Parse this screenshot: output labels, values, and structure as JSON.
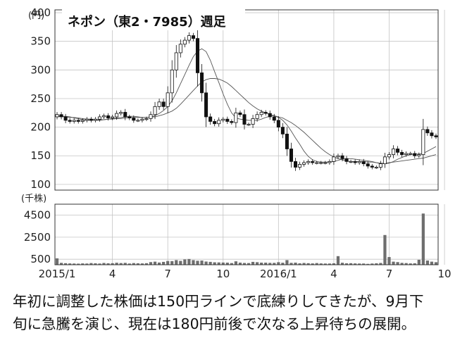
{
  "chart_data": {
    "type": "candlestick",
    "title": "ネポン（東2・7985）週足",
    "price_unit_label": "(円)",
    "volume_unit_label": "(千株)",
    "price_axis": {
      "ticks": [
        100,
        150,
        200,
        250,
        300,
        350,
        400
      ],
      "ylim": [
        90,
        405
      ]
    },
    "volume_axis": {
      "ticks": [
        500,
        2500,
        4500
      ],
      "ylim": [
        0,
        5500
      ]
    },
    "x_axis": {
      "tick_labels": [
        "2015/1",
        "4",
        "7",
        "10",
        "2016/1",
        "4",
        "7",
        "10"
      ],
      "tick_weeks": [
        0,
        13,
        26,
        39,
        52,
        65,
        78,
        91
      ]
    },
    "weekly_open": [
      218,
      222,
      218,
      212,
      210,
      212,
      210,
      212,
      214,
      212,
      214,
      218,
      220,
      216,
      218,
      224,
      226,
      218,
      216,
      212,
      212,
      214,
      215,
      222,
      236,
      244,
      236,
      260,
      300,
      330,
      345,
      352,
      360,
      355,
      295,
      260,
      218,
      210,
      206,
      212,
      214,
      210,
      208,
      225,
      222,
      205,
      205,
      215,
      222,
      226,
      224,
      218,
      212,
      200,
      188,
      162,
      140,
      130,
      135,
      138,
      140,
      138,
      138,
      138,
      138,
      140,
      148,
      150,
      145,
      140,
      140,
      138,
      140,
      136,
      132,
      130,
      130,
      136,
      148,
      152,
      162,
      156,
      152,
      154,
      154,
      150,
      152,
      196,
      190,
      185
    ],
    "weekly_close": [
      222,
      218,
      212,
      210,
      212,
      210,
      212,
      214,
      212,
      214,
      218,
      220,
      216,
      218,
      224,
      226,
      218,
      216,
      212,
      212,
      214,
      215,
      222,
      236,
      244,
      236,
      260,
      300,
      330,
      345,
      352,
      360,
      355,
      295,
      260,
      218,
      210,
      206,
      212,
      214,
      210,
      208,
      225,
      222,
      205,
      205,
      215,
      222,
      226,
      224,
      218,
      212,
      200,
      188,
      162,
      140,
      130,
      135,
      138,
      140,
      138,
      138,
      138,
      138,
      140,
      148,
      150,
      145,
      140,
      140,
      138,
      140,
      136,
      132,
      130,
      130,
      136,
      148,
      152,
      162,
      156,
      152,
      154,
      154,
      150,
      152,
      196,
      190,
      185,
      183
    ],
    "weekly_volume": [
      580,
      170,
      140,
      120,
      110,
      100,
      120,
      110,
      150,
      130,
      110,
      160,
      130,
      140,
      180,
      150,
      170,
      110,
      150,
      130,
      120,
      140,
      240,
      280,
      200,
      260,
      340,
      330,
      420,
      350,
      480,
      520,
      420,
      360,
      380,
      290,
      260,
      220,
      210,
      200,
      190,
      150,
      310,
      190,
      160,
      150,
      260,
      230,
      190,
      190,
      170,
      170,
      230,
      180,
      420,
      170,
      190,
      130,
      160,
      140,
      120,
      150,
      120,
      110,
      110,
      130,
      780,
      180,
      130,
      140,
      120,
      110,
      110,
      80,
      110,
      130,
      160,
      2700,
      700,
      280,
      240,
      170,
      150,
      120,
      130,
      450,
      4650,
      380,
      280,
      230
    ],
    "ma_short": [
      218,
      219,
      219,
      218,
      216,
      215,
      213,
      212,
      212,
      212,
      212,
      213,
      214,
      215,
      216,
      217,
      218,
      219,
      219,
      218,
      217,
      217,
      218,
      220,
      224,
      229,
      236,
      246,
      260,
      276,
      292,
      308,
      323,
      333,
      337,
      332,
      317,
      297,
      278,
      258,
      240,
      225,
      216,
      214,
      213,
      212,
      212,
      212,
      214,
      217,
      219,
      220,
      217,
      212,
      204,
      193,
      181,
      170,
      158,
      149,
      143,
      140,
      139,
      139,
      139,
      140,
      142,
      144,
      145,
      145,
      144,
      143,
      142,
      141,
      140,
      138,
      136,
      136,
      137,
      140,
      144,
      147,
      150,
      152,
      153,
      153,
      154,
      158,
      162,
      166
    ],
    "ma_long": [
      220,
      219,
      218,
      217,
      217,
      216,
      215,
      214,
      214,
      213,
      213,
      213,
      214,
      214,
      215,
      215,
      216,
      217,
      217,
      217,
      217,
      217,
      218,
      218,
      220,
      222,
      225,
      228,
      233,
      240,
      248,
      256,
      264,
      272,
      279,
      283,
      285,
      285,
      284,
      281,
      277,
      271,
      264,
      257,
      250,
      243,
      237,
      232,
      228,
      225,
      222,
      220,
      218,
      216,
      212,
      208,
      203,
      197,
      191,
      184,
      177,
      170,
      163,
      157,
      152,
      148,
      145,
      143,
      141,
      140,
      140,
      140,
      140,
      139,
      139,
      138,
      137,
      137,
      138,
      139,
      140,
      141,
      142,
      143,
      144,
      145,
      146,
      148,
      150,
      152
    ]
  },
  "caption": {
    "line1": "年初に調整した株価は150円ラインで底練りしてきたが、9月下",
    "line2": "旬に急騰を演じ、現在は180円前後で次なる上昇待ちの展開。"
  }
}
